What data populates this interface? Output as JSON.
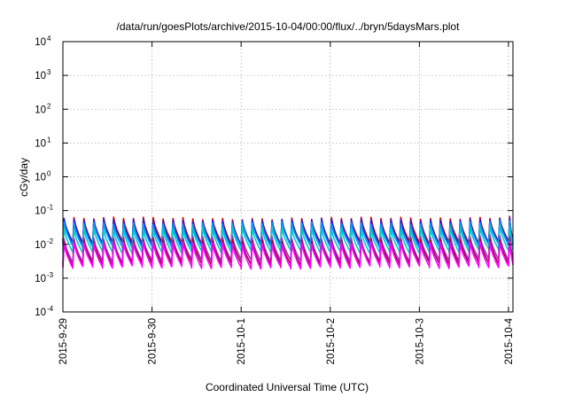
{
  "chart_data": {
    "type": "line",
    "title": "/data/run/goesPlots/archive/2015-10-04/00:00/flux/../bryn/5daysMars.plot",
    "xlabel": "Coordinated Universal Time (UTC)",
    "ylabel": "cGy/day",
    "x_ticks": [
      "2015-9-29",
      "2015-9-30",
      "2015-10-1",
      "2015-10-2",
      "2015-10-3",
      "2015-10-4"
    ],
    "x_range_days": [
      0,
      5.05
    ],
    "y_scale": "log",
    "ylim": [
      0.0001,
      10000
    ],
    "y_ticks": [
      {
        "base": "10",
        "exp": "-4",
        "value": 0.0001
      },
      {
        "base": "10",
        "exp": "-3",
        "value": 0.001
      },
      {
        "base": "10",
        "exp": "-2",
        "value": 0.01
      },
      {
        "base": "10",
        "exp": "-1",
        "value": 0.1
      },
      {
        "base": "10",
        "exp": "0",
        "value": 1
      },
      {
        "base": "10",
        "exp": "1",
        "value": 10
      },
      {
        "base": "10",
        "exp": "2",
        "value": 100
      },
      {
        "base": "10",
        "exp": "3",
        "value": 1000
      },
      {
        "base": "10",
        "exp": "4",
        "value": 10000
      }
    ],
    "grid": true,
    "legend": "none",
    "series_style": "sawtooth",
    "cycles_per_day": 9.0,
    "series": [
      {
        "color": "#dd0000",
        "peak": 0.058,
        "trough": 0.011
      },
      {
        "color": "#2222dd",
        "peak": 0.052,
        "trough": 0.01
      },
      {
        "color": "#0099ff",
        "peak": 0.042,
        "trough": 0.0085
      },
      {
        "color": "#00cccc",
        "peak": 0.03,
        "trough": 0.006
      },
      {
        "color": "#8a3fb0",
        "peak": 0.016,
        "trough": 0.0032
      },
      {
        "color": "#aa0044",
        "peak": 0.013,
        "trough": 0.0026
      },
      {
        "color": "#ff00ff",
        "peak": 0.011,
        "trough": 0.0021
      }
    ]
  }
}
